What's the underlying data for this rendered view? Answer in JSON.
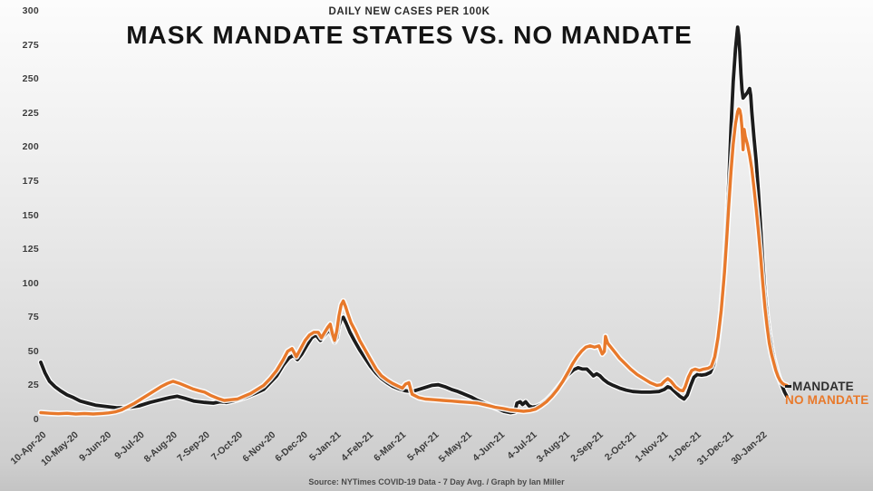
{
  "title": "MASK MANDATE STATES VS. NO MANDATE",
  "subtitle": "DAILY NEW CASES PER 100K",
  "source": "Source: NYTimes COVID-19 Data - 7 Day Avg. / Graph by Ian Miller",
  "legend": {
    "mandate": "MANDATE",
    "no_mandate": "NO MANDATE"
  },
  "colors": {
    "mandate_line": "#1c1c1c",
    "no_mandate_line": "#E8792B",
    "line_halo": "#ffffff",
    "axis_text": "#3c3c3c"
  },
  "chart_data": {
    "type": "line",
    "title": "MASK MANDATE STATES VS. NO MANDATE",
    "subtitle": "DAILY NEW CASES PER 100K",
    "xlabel": "",
    "ylabel": "",
    "ylim": [
      0,
      300
    ],
    "grid": false,
    "legend_position": "right-end-of-lines",
    "y_ticks": [
      0,
      25,
      50,
      75,
      100,
      125,
      150,
      175,
      200,
      225,
      250,
      275,
      300
    ],
    "x_tick_labels": [
      "10-Apr-20",
      "10-May-20",
      "9-Jun-20",
      "9-Jul-20",
      "8-Aug-20",
      "7-Sep-20",
      "7-Oct-20",
      "6-Nov-20",
      "6-Dec-20",
      "5-Jan-21",
      "4-Feb-21",
      "6-Mar-21",
      "5-Apr-21",
      "5-May-21",
      "4-Jun-21",
      "4-Jul-21",
      "3-Aug-21",
      "2-Sep-21",
      "2-Oct-21",
      "1-Nov-21",
      "1-Dec-21",
      "31-Dec-21",
      "30-Jan-22"
    ],
    "x_tick_interval_days": 30,
    "x_unit": "days since 10-Apr-20",
    "series": [
      {
        "name": "MANDATE",
        "color": "#1c1c1c",
        "points": [
          [
            0,
            42
          ],
          [
            4,
            34
          ],
          [
            8,
            28
          ],
          [
            13,
            24
          ],
          [
            18,
            21
          ],
          [
            24,
            18
          ],
          [
            30,
            16
          ],
          [
            36,
            13.5
          ],
          [
            43,
            12
          ],
          [
            50,
            10.5
          ],
          [
            60,
            9.5
          ],
          [
            70,
            8.5
          ],
          [
            80,
            8.7
          ],
          [
            90,
            10
          ],
          [
            100,
            12.5
          ],
          [
            110,
            14.5
          ],
          [
            118,
            16
          ],
          [
            125,
            17
          ],
          [
            132,
            15.5
          ],
          [
            140,
            13.5
          ],
          [
            150,
            12.5
          ],
          [
            158,
            12
          ],
          [
            164,
            13
          ],
          [
            170,
            12.5
          ],
          [
            176,
            13.5
          ],
          [
            182,
            15
          ],
          [
            188,
            16.5
          ],
          [
            196,
            19
          ],
          [
            204,
            22
          ],
          [
            210,
            27
          ],
          [
            216,
            32
          ],
          [
            222,
            40
          ],
          [
            227,
            45
          ],
          [
            231,
            47
          ],
          [
            235,
            44
          ],
          [
            239,
            48
          ],
          [
            244,
            55
          ],
          [
            248,
            60
          ],
          [
            252,
            62
          ],
          [
            256,
            58
          ],
          [
            260,
            62
          ],
          [
            264,
            66
          ],
          [
            267,
            61
          ],
          [
            269,
            57
          ],
          [
            271,
            60
          ],
          [
            273,
            69
          ],
          [
            275,
            74
          ],
          [
            277,
            75
          ],
          [
            280,
            70
          ],
          [
            283,
            64
          ],
          [
            287,
            58
          ],
          [
            292,
            51
          ],
          [
            297,
            45
          ],
          [
            302,
            39
          ],
          [
            307,
            34
          ],
          [
            312,
            30
          ],
          [
            317,
            27
          ],
          [
            322,
            24.5
          ],
          [
            328,
            22.5
          ],
          [
            334,
            21
          ],
          [
            340,
            20.5
          ],
          [
            346,
            22
          ],
          [
            352,
            23.5
          ],
          [
            358,
            25
          ],
          [
            364,
            25.5
          ],
          [
            370,
            24
          ],
          [
            376,
            22
          ],
          [
            382,
            20.5
          ],
          [
            388,
            18.5
          ],
          [
            394,
            16.5
          ],
          [
            400,
            14
          ],
          [
            406,
            12
          ],
          [
            412,
            10
          ],
          [
            418,
            8
          ],
          [
            424,
            6
          ],
          [
            430,
            5
          ],
          [
            434,
            5.5
          ],
          [
            436,
            12
          ],
          [
            439,
            13
          ],
          [
            441,
            11
          ],
          [
            444,
            13
          ],
          [
            447,
            10
          ],
          [
            450,
            9
          ],
          [
            454,
            9.5
          ],
          [
            458,
            11
          ],
          [
            463,
            14
          ],
          [
            468,
            18
          ],
          [
            473,
            23
          ],
          [
            478,
            28
          ],
          [
            483,
            33
          ],
          [
            488,
            36.5
          ],
          [
            492,
            38
          ],
          [
            496,
            37
          ],
          [
            500,
            37
          ],
          [
            503,
            34.5
          ],
          [
            506,
            32
          ],
          [
            509,
            33.5
          ],
          [
            512,
            32
          ],
          [
            515,
            29.5
          ],
          [
            519,
            27
          ],
          [
            524,
            25
          ],
          [
            530,
            23
          ],
          [
            536,
            21.5
          ],
          [
            542,
            20.5
          ],
          [
            550,
            20
          ],
          [
            558,
            20
          ],
          [
            566,
            20.5
          ],
          [
            571,
            22
          ],
          [
            574,
            24
          ],
          [
            577,
            23
          ],
          [
            581,
            20
          ],
          [
            585,
            17
          ],
          [
            589,
            15
          ],
          [
            592,
            18
          ],
          [
            595,
            25
          ],
          [
            598,
            31
          ],
          [
            601,
            33
          ],
          [
            605,
            32.5
          ],
          [
            609,
            33
          ],
          [
            613,
            34.5
          ],
          [
            616,
            40
          ],
          [
            619,
            52
          ],
          [
            622,
            72
          ],
          [
            625,
            100
          ],
          [
            628,
            140
          ],
          [
            630,
            175
          ],
          [
            632,
            215
          ],
          [
            634,
            248
          ],
          [
            636,
            272
          ],
          [
            638,
            288
          ],
          [
            639,
            282
          ],
          [
            640,
            270
          ],
          [
            641,
            254
          ],
          [
            642,
            242
          ],
          [
            643,
            236
          ],
          [
            645,
            238
          ],
          [
            647,
            240
          ],
          [
            649,
            243
          ],
          [
            650,
            238
          ],
          [
            651,
            226
          ],
          [
            653,
            207
          ],
          [
            655,
            190
          ],
          [
            657,
            167
          ],
          [
            659,
            142
          ],
          [
            661,
            116
          ],
          [
            663,
            93
          ],
          [
            665,
            76
          ],
          [
            667,
            63
          ],
          [
            669,
            53
          ],
          [
            671,
            45
          ],
          [
            673,
            39
          ],
          [
            675,
            33
          ],
          [
            677,
            28
          ],
          [
            679,
            24
          ],
          [
            681,
            20
          ],
          [
            683,
            17
          ]
        ]
      },
      {
        "name": "NO MANDATE",
        "color": "#E8792B",
        "points": [
          [
            0,
            5
          ],
          [
            8,
            4.5
          ],
          [
            16,
            4.2
          ],
          [
            24,
            4.5
          ],
          [
            32,
            4
          ],
          [
            40,
            4.3
          ],
          [
            48,
            4
          ],
          [
            56,
            4.4
          ],
          [
            62,
            4.8
          ],
          [
            68,
            5.5
          ],
          [
            74,
            7
          ],
          [
            80,
            9.5
          ],
          [
            86,
            12
          ],
          [
            92,
            15
          ],
          [
            98,
            18
          ],
          [
            104,
            21
          ],
          [
            110,
            24
          ],
          [
            116,
            26.5
          ],
          [
            121,
            28
          ],
          [
            127,
            26.5
          ],
          [
            133,
            24.5
          ],
          [
            139,
            22.5
          ],
          [
            145,
            21
          ],
          [
            150,
            20
          ],
          [
            156,
            17.5
          ],
          [
            162,
            15.5
          ],
          [
            168,
            14
          ],
          [
            174,
            14.5
          ],
          [
            180,
            15
          ],
          [
            186,
            17
          ],
          [
            192,
            19
          ],
          [
            198,
            22
          ],
          [
            204,
            25
          ],
          [
            210,
            30
          ],
          [
            216,
            36
          ],
          [
            222,
            44
          ],
          [
            226,
            50
          ],
          [
            230,
            52
          ],
          [
            234,
            46
          ],
          [
            238,
            52
          ],
          [
            242,
            58
          ],
          [
            246,
            62
          ],
          [
            250,
            64
          ],
          [
            254,
            64
          ],
          [
            257,
            60
          ],
          [
            260,
            64
          ],
          [
            263,
            68
          ],
          [
            265,
            70
          ],
          [
            267,
            63
          ],
          [
            269,
            58
          ],
          [
            271,
            65
          ],
          [
            273,
            76
          ],
          [
            275,
            84
          ],
          [
            277,
            87
          ],
          [
            279,
            83
          ],
          [
            281,
            78
          ],
          [
            284,
            71
          ],
          [
            288,
            65
          ],
          [
            292,
            58
          ],
          [
            297,
            51
          ],
          [
            302,
            44
          ],
          [
            307,
            37
          ],
          [
            312,
            32
          ],
          [
            317,
            29
          ],
          [
            322,
            26.5
          ],
          [
            327,
            24.5
          ],
          [
            331,
            23
          ],
          [
            334,
            26
          ],
          [
            337,
            27
          ],
          [
            340,
            18.5
          ],
          [
            346,
            16
          ],
          [
            352,
            15
          ],
          [
            360,
            14.5
          ],
          [
            368,
            14
          ],
          [
            376,
            13.5
          ],
          [
            384,
            13
          ],
          [
            392,
            12.5
          ],
          [
            400,
            12
          ],
          [
            408,
            10.5
          ],
          [
            416,
            9
          ],
          [
            424,
            8
          ],
          [
            430,
            7
          ],
          [
            436,
            6.5
          ],
          [
            442,
            6
          ],
          [
            448,
            6.5
          ],
          [
            453,
            7.5
          ],
          [
            458,
            10
          ],
          [
            463,
            13
          ],
          [
            468,
            17
          ],
          [
            473,
            22
          ],
          [
            478,
            28
          ],
          [
            483,
            35
          ],
          [
            487,
            41
          ],
          [
            491,
            46
          ],
          [
            495,
            50
          ],
          [
            499,
            53
          ],
          [
            503,
            54
          ],
          [
            507,
            53
          ],
          [
            511,
            54
          ],
          [
            514,
            48
          ],
          [
            516,
            50
          ],
          [
            517,
            61
          ],
          [
            519,
            56
          ],
          [
            522,
            53
          ],
          [
            526,
            49
          ],
          [
            530,
            45
          ],
          [
            535,
            41
          ],
          [
            540,
            37
          ],
          [
            546,
            33
          ],
          [
            552,
            30
          ],
          [
            558,
            27
          ],
          [
            564,
            25
          ],
          [
            568,
            25.5
          ],
          [
            571,
            28
          ],
          [
            574,
            30
          ],
          [
            577,
            28
          ],
          [
            581,
            24
          ],
          [
            585,
            21.5
          ],
          [
            588,
            21
          ],
          [
            590,
            24
          ],
          [
            593,
            31
          ],
          [
            596,
            36
          ],
          [
            599,
            37
          ],
          [
            603,
            36
          ],
          [
            607,
            37
          ],
          [
            611,
            37.5
          ],
          [
            614,
            39
          ],
          [
            617,
            46
          ],
          [
            620,
            60
          ],
          [
            623,
            80
          ],
          [
            626,
            108
          ],
          [
            628,
            132
          ],
          [
            630,
            158
          ],
          [
            632,
            182
          ],
          [
            634,
            202
          ],
          [
            636,
            217
          ],
          [
            638,
            226
          ],
          [
            639,
            228
          ],
          [
            640,
            227
          ],
          [
            641,
            223
          ],
          [
            642,
            214
          ],
          [
            643,
            198
          ],
          [
            644,
            213
          ],
          [
            645,
            208
          ],
          [
            647,
            202
          ],
          [
            649,
            194
          ],
          [
            651,
            184
          ],
          [
            653,
            170
          ],
          [
            655,
            155
          ],
          [
            657,
            138
          ],
          [
            659,
            120
          ],
          [
            661,
            100
          ],
          [
            663,
            82
          ],
          [
            665,
            68
          ],
          [
            667,
            56
          ],
          [
            669,
            48
          ],
          [
            671,
            42
          ],
          [
            673,
            36
          ],
          [
            675,
            31.5
          ],
          [
            677,
            28.5
          ],
          [
            679,
            26.5
          ],
          [
            681,
            25.5
          ],
          [
            683,
            25
          ]
        ]
      }
    ]
  }
}
